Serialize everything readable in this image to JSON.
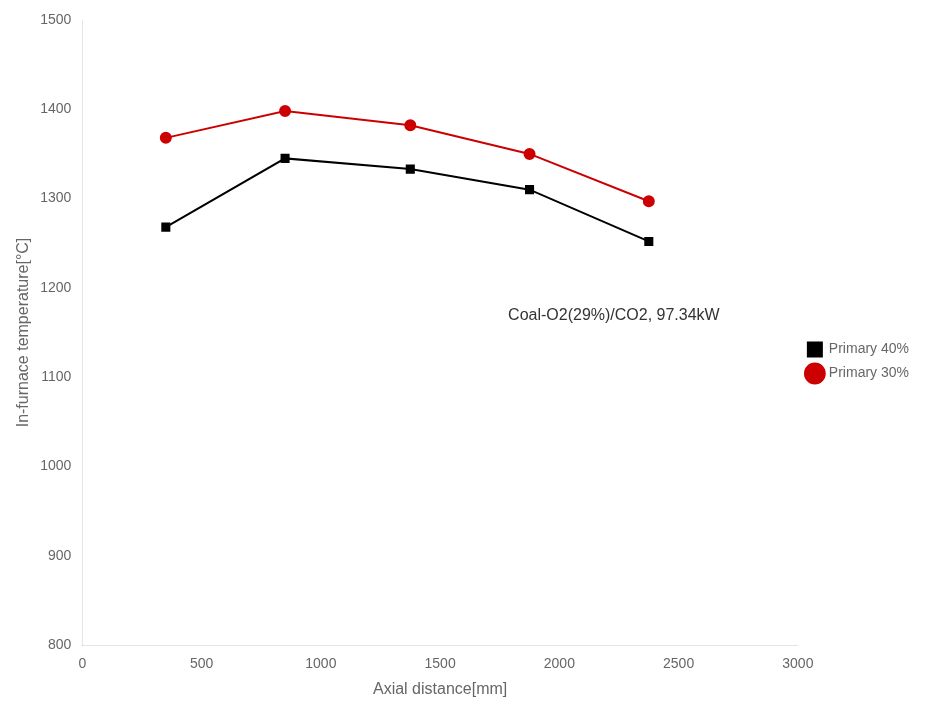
{
  "chart_data": {
    "type": "line",
    "xlabel": "Axial distance[mm]",
    "ylabel": "In-furnace temperature[°C]",
    "xlim": [
      0,
      3000
    ],
    "ylim": [
      800,
      1500
    ],
    "xticks": [
      0,
      500,
      1000,
      1500,
      2000,
      2500,
      3000
    ],
    "yticks": [
      800,
      900,
      1000,
      1100,
      1200,
      1300,
      1400,
      1500
    ],
    "x": [
      350,
      850,
      1375,
      1875,
      2375
    ],
    "series": [
      {
        "name": "Primary 40%",
        "color": "#000000",
        "marker": "square",
        "values": [
          1268,
          1345,
          1333,
          1310,
          1252
        ]
      },
      {
        "name": "Primary 30%",
        "color": "#cc0000",
        "marker": "circle",
        "values": [
          1368,
          1398,
          1382,
          1350,
          1297
        ]
      }
    ],
    "annotation": "Coal-O2(29%)/CO2, 97.34kW",
    "legend": "right",
    "grid": false
  }
}
